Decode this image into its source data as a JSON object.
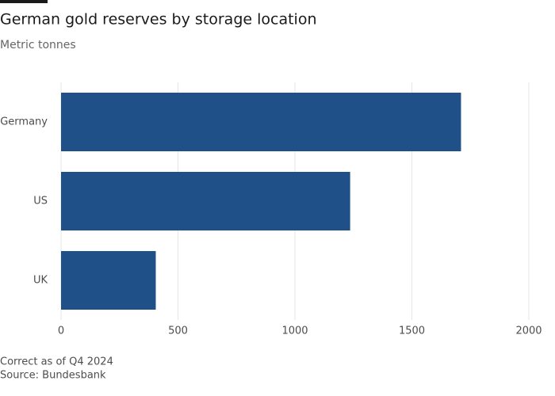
{
  "chart_data": {
    "type": "bar",
    "orientation": "horizontal",
    "title": "German gold reserves by storage location",
    "subtitle": "Metric tonnes",
    "categories": [
      "Germany",
      "US",
      "UK"
    ],
    "values": [
      1710,
      1236,
      405
    ],
    "color": "#1f5088",
    "xlim": [
      0,
      2000
    ],
    "xticks": [
      0,
      500,
      1000,
      1500,
      2000
    ],
    "grid": true,
    "notes": [
      "Correct as of Q4 2024",
      "Source: Bundesbank"
    ]
  }
}
